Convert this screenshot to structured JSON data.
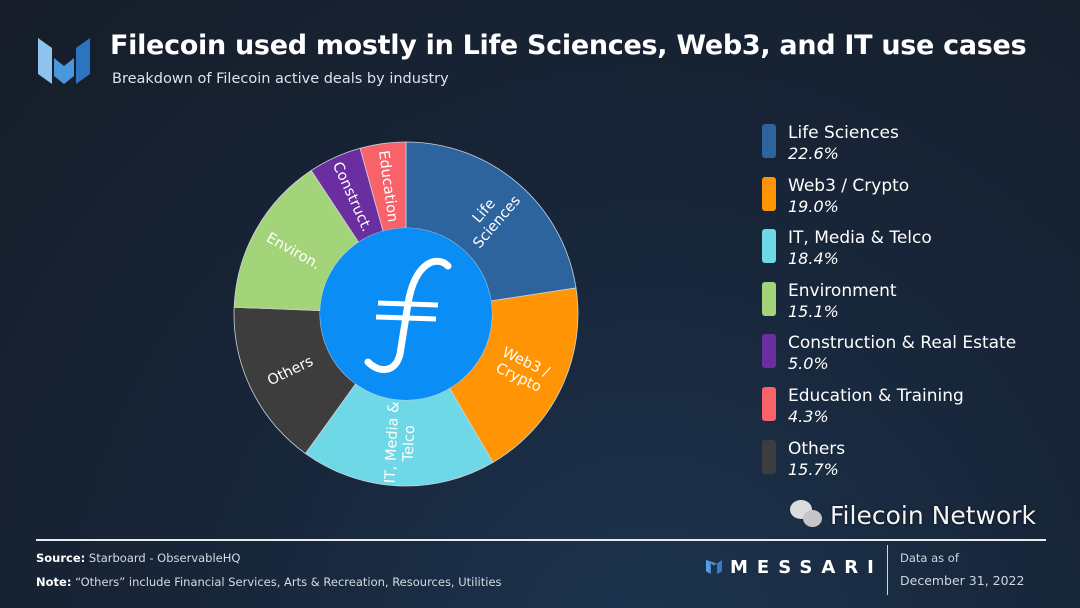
{
  "header": {
    "title": "Filecoin used mostly in Life Sciences, Web3, and IT use cases",
    "subtitle": "Breakdown of Filecoin active deals by industry"
  },
  "chart_data": {
    "type": "pie",
    "variant": "donut",
    "center_icon": "filecoin-logo",
    "start": "top, clockwise",
    "slices": [
      {
        "label": "Life Sciences",
        "chart_label": [
          "Life",
          "Sciences"
        ],
        "value": 22.6,
        "display": "22.6%",
        "color": "#2d649e"
      },
      {
        "label": "Web3 / Crypto",
        "chart_label": [
          "Web3 /",
          "Crypto"
        ],
        "value": 19.0,
        "display": "19.0%",
        "color": "#ff9405"
      },
      {
        "label": "IT, Media & Telco",
        "chart_label": [
          "IT, Media &",
          "Telco"
        ],
        "value": 18.4,
        "display": "18.4%",
        "color": "#6fd8e6"
      },
      {
        "label": "Others",
        "chart_label": [
          "Others"
        ],
        "value": 15.7,
        "display": "15.7%",
        "color": "#3d3d3d"
      },
      {
        "label": "Environment",
        "chart_label": [
          "Environ."
        ],
        "value": 15.1,
        "display": "15.1%",
        "color": "#a3d47a"
      },
      {
        "label": "Construction & Real Estate",
        "chart_label": [
          "Construct."
        ],
        "value": 5.0,
        "display": "5.0%",
        "color": "#6a2ea0"
      },
      {
        "label": "Education & Training",
        "chart_label": [
          "Education"
        ],
        "value": 4.3,
        "display": "4.3%",
        "color": "#f8636a"
      }
    ],
    "legend_order": [
      0,
      1,
      2,
      4,
      5,
      6,
      3
    ],
    "legend_position": "right"
  },
  "footer": {
    "source_label": "Source:",
    "source": "Starboard - ObservableHQ",
    "note_label": "Note:",
    "note": "“Others” include Financial Services, Arts & Recreation, Resources, Utilities",
    "brand": "MESSARI",
    "as_of": "Data as of",
    "date": "December 31, 2022",
    "watermark": "Filecoin Network"
  }
}
